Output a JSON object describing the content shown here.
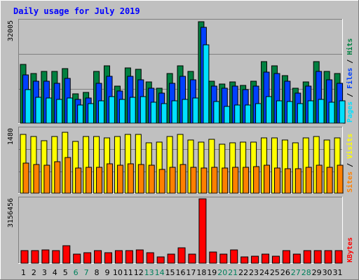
{
  "chart_data": {
    "title": "Daily usage for July 2019",
    "type": "bar",
    "colors": {
      "hits": "#008040",
      "files": "#0040ff",
      "pages": "#00e0ff",
      "visits": "#ffff00",
      "sites": "#ff8000",
      "kbytes": "#ff0000",
      "title": "#0000ff",
      "weekend": "#00805c",
      "weekday": "#000000",
      "panel": "#c0c0c0"
    },
    "days": [
      "1",
      "2",
      "3",
      "4",
      "5",
      "6",
      "7",
      "8",
      "9",
      "10",
      "11",
      "12",
      "13",
      "14",
      "15",
      "16",
      "17",
      "18",
      "19",
      "20",
      "21",
      "22",
      "23",
      "24",
      "25",
      "26",
      "27",
      "28",
      "29",
      "30",
      "31"
    ],
    "weekend_days": [
      "6",
      "7",
      "13",
      "14",
      "20",
      "21",
      "27",
      "28"
    ],
    "panels": [
      {
        "id": "usage",
        "max_label": "32005",
        "ymax": 32005,
        "legend": [
          {
            "text": "Pages",
            "color": "#00e0ff"
          },
          {
            "text": " / ",
            "color": "#000000"
          },
          {
            "text": "Files",
            "color": "#0040ff"
          },
          {
            "text": " / ",
            "color": "#000000"
          },
          {
            "text": "Hits",
            "color": "#008040"
          }
        ],
        "series": [
          {
            "name": "Hits",
            "color": "#008040",
            "values": [
              18500,
              15500,
              16300,
              16300,
              17200,
              9100,
              9700,
              16300,
              17900,
              11600,
              17400,
              16800,
              12900,
              11000,
              15500,
              17900,
              16300,
              31800,
              13200,
              12300,
              12900,
              11900,
              13200,
              19200,
              17900,
              14800,
              11000,
              12900,
              19200,
              16300,
              15500
            ]
          },
          {
            "name": "Files",
            "color": "#0040ff",
            "values": [
              15200,
              13200,
              13200,
              12600,
              14100,
              7500,
              8000,
              12600,
              14600,
              10100,
              14600,
              13700,
              11000,
              9400,
              12600,
              14600,
              13700,
              30100,
              11600,
              11000,
              11600,
              10600,
              11600,
              15900,
              15500,
              13200,
              9400,
              11600,
              16300,
              13700,
              12600
            ]
          },
          {
            "name": "Pages",
            "color": "#00e0ff",
            "values": [
              10500,
              8200,
              7800,
              7500,
              8000,
              5800,
              6200,
              7000,
              8400,
              7400,
              8200,
              8400,
              6600,
              6200,
              7000,
              7500,
              8000,
              24500,
              6900,
              5200,
              5600,
              5600,
              6200,
              8400,
              7000,
              6900,
              6200,
              7000,
              7500,
              6500,
              7000
            ]
          }
        ]
      },
      {
        "id": "visits",
        "max_label": "1480",
        "ymax": 1480,
        "legend": [
          {
            "text": "Sites",
            "color": "#ff8000"
          },
          {
            "text": " / ",
            "color": "#000000"
          },
          {
            "text": "Visits",
            "color": "#ffff00"
          }
        ],
        "series": [
          {
            "name": "Visits",
            "color": "#ffff00",
            "values": [
              1350,
              1310,
              1210,
              1310,
              1400,
              1190,
              1310,
              1310,
              1270,
              1310,
              1350,
              1350,
              1160,
              1180,
              1310,
              1350,
              1230,
              1180,
              1240,
              1120,
              1160,
              1180,
              1180,
              1270,
              1270,
              1230,
              1160,
              1270,
              1310,
              1230,
              1270
            ]
          },
          {
            "name": "Sites",
            "color": "#ff8000",
            "values": [
              690,
              660,
              650,
              720,
              820,
              580,
              590,
              590,
              680,
              650,
              680,
              660,
              640,
              540,
              600,
              660,
              590,
              580,
              590,
              580,
              590,
              590,
              610,
              650,
              580,
              570,
              560,
              600,
              640,
              590,
              640
            ]
          }
        ]
      },
      {
        "id": "kbytes",
        "max_label": "3156456",
        "ymax": 3156456,
        "legend": [
          {
            "text": "KBytes",
            "color": "#ff0000"
          }
        ],
        "series": [
          {
            "name": "KBytes",
            "color": "#ff0000",
            "values": [
              610000,
              610000,
              660000,
              610000,
              860000,
              460000,
              530000,
              610000,
              500000,
              610000,
              610000,
              660000,
              500000,
              310000,
              430000,
              770000,
              430000,
              3156456,
              560000,
              460000,
              660000,
              310000,
              360000,
              460000,
              360000,
              610000,
              460000,
              610000,
              610000,
              610000,
              610000
            ]
          }
        ]
      }
    ]
  }
}
